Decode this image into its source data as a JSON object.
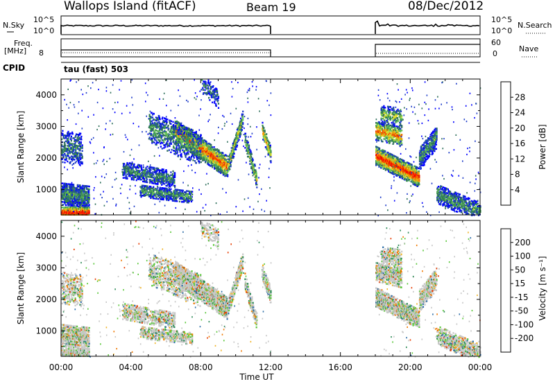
{
  "header": {
    "station": "Wallops Island (fitACF)",
    "beam": "Beam 19",
    "date": "08/Dec/2012"
  },
  "strip": {
    "nsky_label": "N.Sky",
    "nsky_ticks": [
      "10^5",
      "10^0"
    ],
    "nsearch_label": "N.Search",
    "nsearch_ticks": [
      "10^5",
      "10^0"
    ],
    "freq_label": "Freq.",
    "freq_unit": "[MHz]",
    "freq_tick": "8",
    "nave_label": "Nave",
    "nave_ticks": [
      "60",
      "0"
    ],
    "cpid_label": "CPID",
    "cpid_value": "tau (fast) 503"
  },
  "chart_data": [
    {
      "type": "heatmap",
      "panel": "power",
      "ylabel": "Slant Range [km]",
      "yticks": [
        1000,
        2000,
        3000,
        4000
      ],
      "ylim": [
        200,
        4500
      ],
      "xlim_hours": [
        0,
        24
      ],
      "colorbar_label": "Power [dB]",
      "colorbar_ticks": [
        "28",
        "24",
        "20",
        "16",
        "12",
        "8",
        "4"
      ],
      "colors": [
        "#0000ff",
        "#1e3cc8",
        "#2d6e5a",
        "#3c9650",
        "#6ec85a",
        "#dcdc28",
        "#f5a000",
        "#f06400",
        "#e61e00",
        "#ff0000"
      ],
      "gap_hours": [
        12,
        18
      ]
    },
    {
      "type": "heatmap",
      "panel": "velocity",
      "ylabel": "Slant Range [km]",
      "yticks": [
        1000,
        2000,
        3000,
        4000
      ],
      "ylim": [
        200,
        4500
      ],
      "xlim_hours": [
        0,
        24
      ],
      "colorbar_label": "Velocity [m s⁻¹]",
      "colorbar_ticks": [
        "200",
        "100",
        "50",
        "15",
        "-15",
        "-50",
        "-100",
        "-200"
      ],
      "colors": [
        "#1a2ea8",
        "#2f6fa8",
        "#2e8b57",
        "#5cc83c",
        "#c8c8c8",
        "#f0b428",
        "#f07800",
        "#e63c00",
        "#ff0000"
      ],
      "gap_hours": [
        12,
        18
      ]
    }
  ],
  "xaxis": {
    "ticks": [
      "00:00",
      "04:00",
      "08:00",
      "12:00",
      "16:00",
      "20:00",
      "00:00"
    ],
    "label": "Time UT"
  }
}
